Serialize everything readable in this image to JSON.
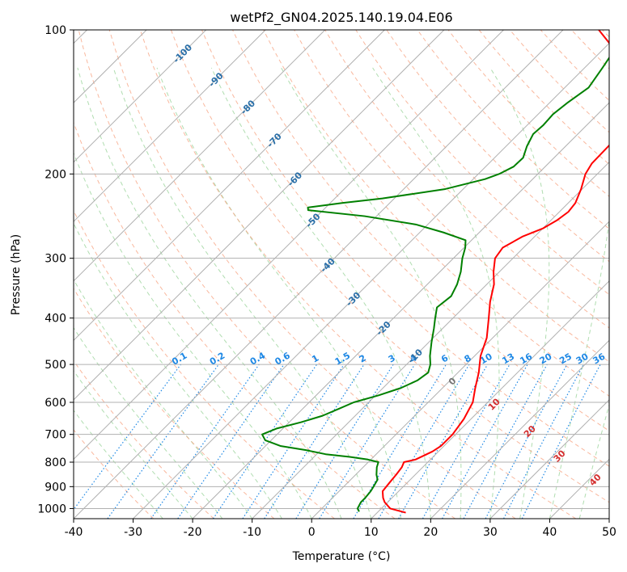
{
  "chart_data": {
    "type": "line",
    "chart_kind": "skew-T log-P diagram",
    "title": "wetPf2_GN04.2025.140.19.04.E06",
    "xlabel": "Temperature (°C)",
    "ylabel": "Pressure (hPa)",
    "xlim": [
      -40,
      50
    ],
    "ylim": [
      1050,
      100
    ],
    "y_scale": "log",
    "grid": true,
    "legend": "none",
    "x_ticks": [
      -40,
      -30,
      -20,
      -10,
      0,
      10,
      20,
      30,
      40,
      50
    ],
    "y_ticks": [
      100,
      200,
      300,
      400,
      500,
      600,
      700,
      800,
      900,
      1000
    ],
    "series": [
      {
        "color": "#ff0000",
        "points": [
          [
            1020,
            14.8
          ],
          [
            1000,
            11.5
          ],
          [
            970,
            9.5
          ],
          [
            950,
            8.5
          ],
          [
            920,
            7.3
          ],
          [
            880,
            7.0
          ],
          [
            850,
            6.8
          ],
          [
            820,
            6.5
          ],
          [
            800,
            6.0
          ],
          [
            790,
            7.5
          ],
          [
            760,
            9.0
          ],
          [
            740,
            9.5
          ],
          [
            700,
            9.5
          ],
          [
            650,
            8.8
          ],
          [
            600,
            7.5
          ],
          [
            560,
            5.5
          ],
          [
            520,
            3.5
          ],
          [
            480,
            1.0
          ],
          [
            440,
            -1.0
          ],
          [
            400,
            -4.0
          ],
          [
            370,
            -6.5
          ],
          [
            340,
            -8.8
          ],
          [
            320,
            -11.0
          ],
          [
            300,
            -13.0
          ],
          [
            285,
            -13.5
          ],
          [
            270,
            -12.0
          ],
          [
            260,
            -10.0
          ],
          [
            250,
            -9.0
          ],
          [
            240,
            -8.5
          ],
          [
            230,
            -8.8
          ],
          [
            215,
            -10.2
          ],
          [
            200,
            -12.0
          ],
          [
            190,
            -12.7
          ],
          [
            175,
            -12.8
          ],
          [
            160,
            -13.0
          ],
          [
            150,
            -13.8
          ],
          [
            140,
            -16.5
          ],
          [
            130,
            -19.0
          ],
          [
            120,
            -23.0
          ],
          [
            110,
            -28.0
          ],
          [
            100,
            -34.0
          ]
        ]
      },
      {
        "color": "#008000",
        "points": [
          [
            1015,
            6.8
          ],
          [
            1000,
            6.0
          ],
          [
            970,
            5.5
          ],
          [
            950,
            5.5
          ],
          [
            920,
            5.3
          ],
          [
            900,
            5.0
          ],
          [
            870,
            4.5
          ],
          [
            850,
            3.5
          ],
          [
            820,
            2.3
          ],
          [
            810,
            2.0
          ],
          [
            800,
            1.7
          ],
          [
            790,
            -0.5
          ],
          [
            780,
            -4.0
          ],
          [
            770,
            -8.5
          ],
          [
            755,
            -12.5
          ],
          [
            740,
            -17.5
          ],
          [
            720,
            -21.0
          ],
          [
            700,
            -22.5
          ],
          [
            680,
            -21.0
          ],
          [
            660,
            -18.0
          ],
          [
            640,
            -15.5
          ],
          [
            620,
            -14.0
          ],
          [
            600,
            -12.5
          ],
          [
            580,
            -9.5
          ],
          [
            560,
            -7.0
          ],
          [
            540,
            -5.5
          ],
          [
            520,
            -5.0
          ],
          [
            500,
            -6.0
          ],
          [
            480,
            -7.5
          ],
          [
            450,
            -9.5
          ],
          [
            420,
            -11.5
          ],
          [
            400,
            -13.0
          ],
          [
            380,
            -14.5
          ],
          [
            360,
            -14.0
          ],
          [
            340,
            -15.0
          ],
          [
            320,
            -16.5
          ],
          [
            300,
            -18.5
          ],
          [
            285,
            -19.8
          ],
          [
            275,
            -21.0
          ],
          [
            265,
            -26.0
          ],
          [
            255,
            -32.0
          ],
          [
            245,
            -42.0
          ],
          [
            238,
            -52.5
          ],
          [
            235,
            -53.0
          ],
          [
            230,
            -48.0
          ],
          [
            225,
            -42.0
          ],
          [
            215,
            -33.0
          ],
          [
            205,
            -28.0
          ],
          [
            200,
            -26.5
          ],
          [
            193,
            -25.3
          ],
          [
            185,
            -25.2
          ],
          [
            175,
            -26.5
          ],
          [
            165,
            -27.5
          ],
          [
            158,
            -27.3
          ],
          [
            150,
            -27.5
          ],
          [
            142,
            -27.0
          ],
          [
            132,
            -26.0
          ],
          [
            120,
            -27.0
          ],
          [
            110,
            -28.0
          ],
          [
            100,
            -29.5
          ]
        ]
      }
    ],
    "mixing_ratio_labels": [
      "0.1",
      "0.2",
      "0.4",
      "0.6",
      "1",
      "1.5",
      "2",
      "3",
      "4",
      "6",
      "8",
      "10",
      "13",
      "16",
      "20",
      "25",
      "30",
      "36"
    ],
    "dry_adiabat_labels": [
      "-100",
      "-90",
      "-80",
      "-70",
      "-60",
      "-50",
      "-40",
      "-30",
      "-20",
      "-10"
    ],
    "moist_adiabat_labels": [
      "0",
      "10",
      "20",
      "30",
      "40"
    ]
  }
}
